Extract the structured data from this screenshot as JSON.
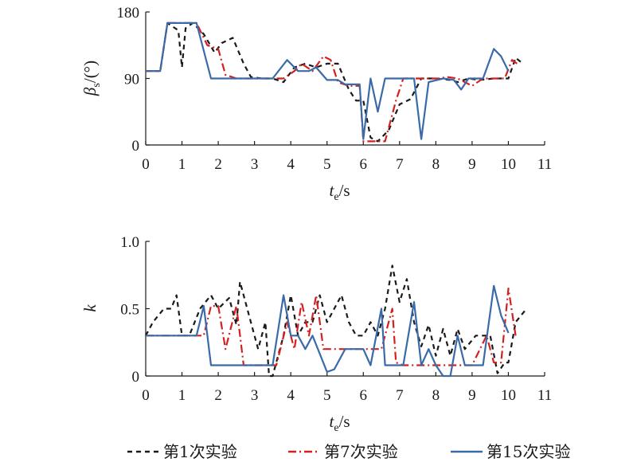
{
  "chart_data": [
    {
      "type": "line",
      "ylabel_main": "β",
      "ylabel_sub": "s",
      "ylabel_unit": "/(°)",
      "xlabel_main": "t",
      "xlabel_sub": "e",
      "xlabel_unit": "/s",
      "xlim": [
        0,
        11
      ],
      "ylim": [
        0,
        180
      ],
      "xticks": [
        "0",
        "1",
        "2",
        "3",
        "4",
        "5",
        "6",
        "7",
        "8",
        "9",
        "10",
        "11"
      ],
      "yticks": [
        "0",
        "90",
        "180"
      ],
      "series": [
        {
          "name": "第1次实验",
          "color": "#1a1a1a",
          "dash": "6,5",
          "points": [
            [
              0,
              100
            ],
            [
              0.4,
              100
            ],
            [
              0.6,
              165
            ],
            [
              0.9,
              155
            ],
            [
              1.0,
              105
            ],
            [
              1.1,
              158
            ],
            [
              1.3,
              165
            ],
            [
              1.6,
              150
            ],
            [
              1.9,
              125
            ],
            [
              2.1,
              138
            ],
            [
              2.4,
              145
            ],
            [
              2.7,
              110
            ],
            [
              2.9,
              92
            ],
            [
              3.2,
              90
            ],
            [
              3.5,
              90
            ],
            [
              3.8,
              85
            ],
            [
              4.1,
              105
            ],
            [
              4.4,
              110
            ],
            [
              4.7,
              105
            ],
            [
              5.0,
              110
            ],
            [
              5.3,
              110
            ],
            [
              5.6,
              75
            ],
            [
              5.8,
              60
            ],
            [
              6.0,
              60
            ],
            [
              6.2,
              10
            ],
            [
              6.4,
              5
            ],
            [
              6.7,
              20
            ],
            [
              7.0,
              55
            ],
            [
              7.3,
              62
            ],
            [
              7.6,
              90
            ],
            [
              8.0,
              90
            ],
            [
              8.4,
              88
            ],
            [
              8.6,
              85
            ],
            [
              8.9,
              90
            ],
            [
              9.2,
              88
            ],
            [
              9.6,
              90
            ],
            [
              9.8,
              90
            ],
            [
              10.0,
              90
            ],
            [
              10.2,
              118
            ],
            [
              10.35,
              112
            ]
          ]
        },
        {
          "name": "第7次实验",
          "color": "#d42020",
          "dash": "10,4,2,4",
          "points": [
            [
              0,
              100
            ],
            [
              0.4,
              100
            ],
            [
              0.6,
              165
            ],
            [
              1.4,
              165
            ],
            [
              1.7,
              135
            ],
            [
              2.0,
              130
            ],
            [
              2.2,
              95
            ],
            [
              2.5,
              90
            ],
            [
              3.5,
              90
            ],
            [
              3.8,
              90
            ],
            [
              4.1,
              100
            ],
            [
              4.3,
              110
            ],
            [
              4.6,
              100
            ],
            [
              4.9,
              120
            ],
            [
              5.1,
              115
            ],
            [
              5.3,
              85
            ],
            [
              5.6,
              80
            ],
            [
              5.9,
              80
            ],
            [
              6.0,
              5
            ],
            [
              6.3,
              5
            ],
            [
              6.6,
              5
            ],
            [
              6.9,
              60
            ],
            [
              7.1,
              90
            ],
            [
              7.6,
              90
            ],
            [
              8.1,
              90
            ],
            [
              8.3,
              92
            ],
            [
              8.6,
              90
            ],
            [
              9.0,
              80
            ],
            [
              9.3,
              90
            ],
            [
              9.6,
              90
            ],
            [
              9.9,
              90
            ],
            [
              10.1,
              115
            ],
            [
              10.3,
              108
            ]
          ]
        },
        {
          "name": "第15次实验",
          "color": "#3a6aa8",
          "dash": "",
          "points": [
            [
              0,
              100
            ],
            [
              0.4,
              100
            ],
            [
              0.6,
              165
            ],
            [
              1.4,
              165
            ],
            [
              1.8,
              90
            ],
            [
              3.5,
              90
            ],
            [
              3.9,
              115
            ],
            [
              4.2,
              100
            ],
            [
              4.5,
              100
            ],
            [
              4.7,
              105
            ],
            [
              5.0,
              88
            ],
            [
              5.3,
              88
            ],
            [
              5.5,
              82
            ],
            [
              5.9,
              82
            ],
            [
              6.0,
              8
            ],
            [
              6.2,
              90
            ],
            [
              6.4,
              45
            ],
            [
              6.6,
              90
            ],
            [
              7.0,
              90
            ],
            [
              7.4,
              90
            ],
            [
              7.6,
              8
            ],
            [
              7.8,
              85
            ],
            [
              8.2,
              90
            ],
            [
              8.5,
              88
            ],
            [
              8.7,
              75
            ],
            [
              8.9,
              90
            ],
            [
              9.3,
              90
            ],
            [
              9.6,
              130
            ],
            [
              9.8,
              120
            ],
            [
              10.0,
              100
            ]
          ]
        }
      ]
    },
    {
      "type": "line",
      "ylabel_main": "k",
      "xlabel_main": "t",
      "xlabel_sub": "e",
      "xlabel_unit": "/s",
      "xlim": [
        0,
        11
      ],
      "ylim": [
        0,
        1.0
      ],
      "xticks": [
        "0",
        "1",
        "2",
        "3",
        "4",
        "5",
        "6",
        "7",
        "8",
        "9",
        "10",
        "11"
      ],
      "yticks": [
        "0",
        "0.5",
        "1.0"
      ],
      "series": [
        {
          "name": "第1次实验",
          "color": "#1a1a1a",
          "dash": "6,5",
          "points": [
            [
              0,
              0.3
            ],
            [
              0.2,
              0.4
            ],
            [
              0.5,
              0.5
            ],
            [
              0.7,
              0.5
            ],
            [
              0.85,
              0.6
            ],
            [
              1.0,
              0.3
            ],
            [
              1.2,
              0.3
            ],
            [
              1.5,
              0.5
            ],
            [
              1.8,
              0.6
            ],
            [
              2.0,
              0.5
            ],
            [
              2.3,
              0.58
            ],
            [
              2.5,
              0.38
            ],
            [
              2.6,
              0.7
            ],
            [
              2.8,
              0.5
            ],
            [
              3.0,
              0.3
            ],
            [
              3.1,
              0.2
            ],
            [
              3.3,
              0.4
            ],
            [
              3.4,
              0.0
            ],
            [
              3.5,
              0.0
            ],
            [
              3.8,
              0.3
            ],
            [
              4.0,
              0.6
            ],
            [
              4.2,
              0.3
            ],
            [
              4.4,
              0.4
            ],
            [
              4.6,
              0.4
            ],
            [
              4.8,
              0.6
            ],
            [
              5.0,
              0.4
            ],
            [
              5.2,
              0.5
            ],
            [
              5.4,
              0.6
            ],
            [
              5.6,
              0.4
            ],
            [
              5.8,
              0.3
            ],
            [
              6.0,
              0.3
            ],
            [
              6.2,
              0.4
            ],
            [
              6.4,
              0.3
            ],
            [
              6.6,
              0.5
            ],
            [
              6.8,
              0.82
            ],
            [
              7.0,
              0.55
            ],
            [
              7.2,
              0.72
            ],
            [
              7.4,
              0.4
            ],
            [
              7.6,
              0.22
            ],
            [
              7.8,
              0.38
            ],
            [
              8.0,
              0.15
            ],
            [
              8.2,
              0.35
            ],
            [
              8.4,
              0.15
            ],
            [
              8.6,
              0.35
            ],
            [
              8.8,
              0.2
            ],
            [
              9.1,
              0.3
            ],
            [
              9.5,
              0.3
            ],
            [
              9.7,
              0.02
            ],
            [
              9.9,
              0.1
            ],
            [
              10.0,
              0.1
            ],
            [
              10.2,
              0.4
            ],
            [
              10.5,
              0.5
            ]
          ]
        },
        {
          "name": "第7次实验",
          "color": "#d42020",
          "dash": "10,4,2,4",
          "points": [
            [
              0,
              0.3
            ],
            [
              1.6,
              0.3
            ],
            [
              1.8,
              0.52
            ],
            [
              2.0,
              0.52
            ],
            [
              2.2,
              0.2
            ],
            [
              2.5,
              0.52
            ],
            [
              2.7,
              0.08
            ],
            [
              3.0,
              0.08
            ],
            [
              3.4,
              0.08
            ],
            [
              3.6,
              0.08
            ],
            [
              3.9,
              0.4
            ],
            [
              4.1,
              0.2
            ],
            [
              4.3,
              0.55
            ],
            [
              4.5,
              0.3
            ],
            [
              4.7,
              0.6
            ],
            [
              4.9,
              0.2
            ],
            [
              5.2,
              0.2
            ],
            [
              5.5,
              0.2
            ],
            [
              5.8,
              0.2
            ],
            [
              6.2,
              0.2
            ],
            [
              6.5,
              0.2
            ],
            [
              6.8,
              0.5
            ],
            [
              6.9,
              0.1
            ],
            [
              7.1,
              0.08
            ],
            [
              7.5,
              0.08
            ],
            [
              7.8,
              0.08
            ],
            [
              8.1,
              0.08
            ],
            [
              8.5,
              0.08
            ],
            [
              9.0,
              0.08
            ],
            [
              9.4,
              0.3
            ],
            [
              9.6,
              0.1
            ],
            [
              9.8,
              0.1
            ],
            [
              10.0,
              0.65
            ],
            [
              10.2,
              0.3
            ]
          ]
        },
        {
          "name": "第15次实验",
          "color": "#3a6aa8",
          "dash": "",
          "points": [
            [
              0,
              0.3
            ],
            [
              1.4,
              0.3
            ],
            [
              1.6,
              0.52
            ],
            [
              1.8,
              0.08
            ],
            [
              3.3,
              0.08
            ],
            [
              3.5,
              0.08
            ],
            [
              3.8,
              0.6
            ],
            [
              4.0,
              0.3
            ],
            [
              4.2,
              0.3
            ],
            [
              4.4,
              0.2
            ],
            [
              4.6,
              0.3
            ],
            [
              5.0,
              0.03
            ],
            [
              5.2,
              0.05
            ],
            [
              5.5,
              0.2
            ],
            [
              6.0,
              0.2
            ],
            [
              6.2,
              0.08
            ],
            [
              6.5,
              0.5
            ],
            [
              6.6,
              0.08
            ],
            [
              7.1,
              0.08
            ],
            [
              7.4,
              0.55
            ],
            [
              7.6,
              0.08
            ],
            [
              7.8,
              0.2
            ],
            [
              8.0,
              0.08
            ],
            [
              8.2,
              0.0
            ],
            [
              8.4,
              0.0
            ],
            [
              8.6,
              0.3
            ],
            [
              8.8,
              0.08
            ],
            [
              9.0,
              0.08
            ],
            [
              9.3,
              0.08
            ],
            [
              9.6,
              0.67
            ],
            [
              9.8,
              0.45
            ],
            [
              10.0,
              0.32
            ]
          ]
        }
      ]
    }
  ],
  "legend": [
    {
      "label": "第1次实验",
      "color": "#1a1a1a",
      "dash": "6,5"
    },
    {
      "label": "第7次实验",
      "color": "#d42020",
      "dash": "10,4,2,4"
    },
    {
      "label": "第15次实验",
      "color": "#3a6aa8",
      "dash": ""
    }
  ]
}
